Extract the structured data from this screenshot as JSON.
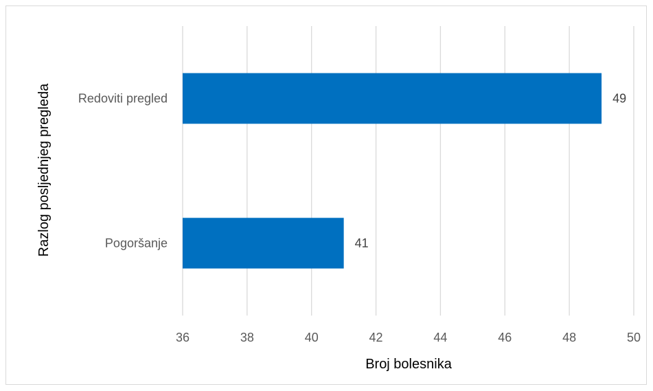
{
  "chart_data": {
    "type": "bar",
    "orientation": "horizontal",
    "categories": [
      "Pogoršanje",
      "Redoviti pregled"
    ],
    "values": [
      41,
      49
    ],
    "data_labels": [
      "41",
      "49"
    ],
    "xlabel": "Broj bolesnika",
    "ylabel": "Razlog  posljednjeg pregleda",
    "xlim": [
      36,
      50
    ],
    "xticks": [
      36,
      38,
      40,
      42,
      44,
      46,
      48,
      50
    ],
    "grid": "vertical",
    "legend": "none",
    "bar_color": "#0070c0",
    "gridline_color": "#d9d9d9"
  }
}
